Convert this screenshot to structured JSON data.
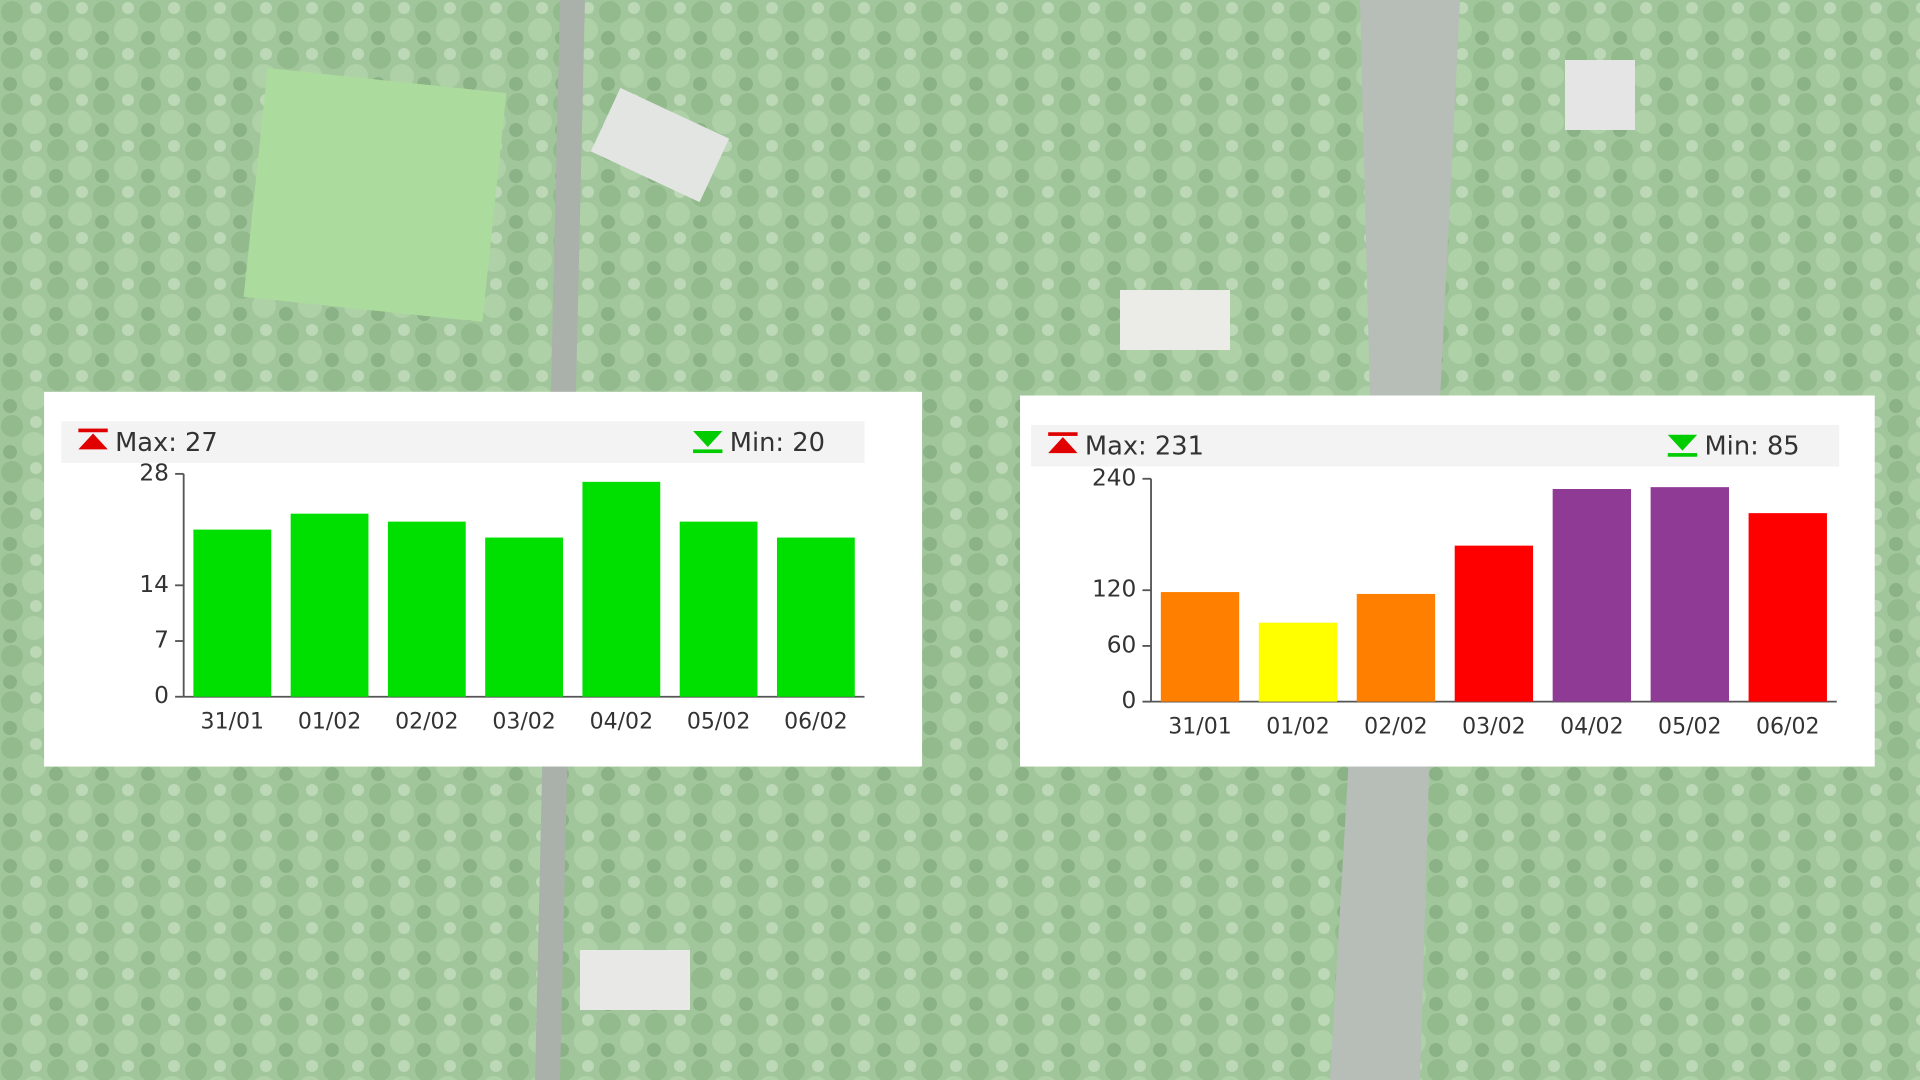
{
  "chart_data": [
    {
      "type": "bar",
      "max_text": "Max: 27",
      "min_text": "Min: 20",
      "categories": [
        "31/01",
        "01/02",
        "02/02",
        "03/02",
        "04/02",
        "05/02",
        "06/02"
      ],
      "values": [
        21,
        23,
        22,
        20,
        27,
        22,
        20
      ],
      "colors": [
        "#00e000",
        "#00e000",
        "#00e000",
        "#00e000",
        "#00e000",
        "#00e000",
        "#00e000"
      ],
      "ylim": [
        0,
        28
      ],
      "yticks": [
        0,
        7,
        14,
        28
      ]
    },
    {
      "type": "bar",
      "max_text": "Max: 231",
      "min_text": "Min: 85",
      "categories": [
        "31/01",
        "01/02",
        "02/02",
        "03/02",
        "04/02",
        "05/02",
        "06/02"
      ],
      "values": [
        118,
        85,
        116,
        168,
        229,
        231,
        203
      ],
      "colors": [
        "#ff8000",
        "#ffff00",
        "#ff8000",
        "#ff0000",
        "#8f3b96",
        "#8f3b96",
        "#ff0000"
      ],
      "ylim": [
        0,
        240
      ],
      "yticks": [
        0,
        60,
        120,
        240
      ]
    }
  ]
}
